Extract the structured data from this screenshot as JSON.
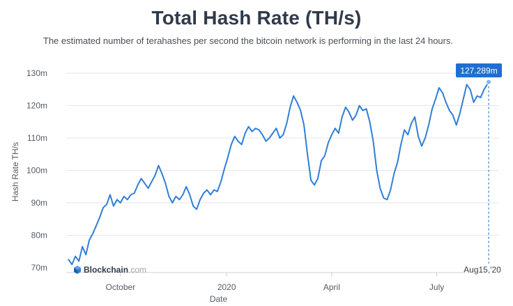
{
  "chart_data": {
    "type": "line",
    "title": "Total Hash Rate (TH/s)",
    "subtitle": "The estimated number of terahashes per second the bitcoin network is performing in the last 24 hours.",
    "xlabel": "Date",
    "ylabel": "Hash Rate TH/s",
    "ylim": [
      70000000,
      130000000
    ],
    "yticks": [
      {
        "value": 70000000,
        "label": "70m"
      },
      {
        "value": 80000000,
        "label": "80m"
      },
      {
        "value": 90000000,
        "label": "90m"
      },
      {
        "value": 100000000,
        "label": "100m"
      },
      {
        "value": 110000000,
        "label": "110m"
      },
      {
        "value": 120000000,
        "label": "120m"
      },
      {
        "value": 130000000,
        "label": "130m"
      }
    ],
    "xlim": [
      "2019-08-15",
      "2020-08-24"
    ],
    "xticks": [
      {
        "value": "2019-10-01",
        "label": "October"
      },
      {
        "value": "2020-01-01",
        "label": "2020"
      },
      {
        "value": "2020-04-01",
        "label": "April"
      },
      {
        "value": "2020-07-01",
        "label": "July"
      }
    ],
    "grid": true,
    "legend": "none",
    "series": [
      {
        "color": "#2f7ed8",
        "points": [
          [
            "2019-08-17",
            72.5
          ],
          [
            "2019-08-20",
            71.0
          ],
          [
            "2019-08-23",
            73.5
          ],
          [
            "2019-08-26",
            72.0
          ],
          [
            "2019-08-29",
            76.5
          ],
          [
            "2019-09-01",
            74.0
          ],
          [
            "2019-09-04",
            78.5
          ],
          [
            "2019-09-07",
            80.5
          ],
          [
            "2019-09-10",
            83.0
          ],
          [
            "2019-09-13",
            85.5
          ],
          [
            "2019-09-16",
            88.5
          ],
          [
            "2019-09-19",
            89.5
          ],
          [
            "2019-09-22",
            92.5
          ],
          [
            "2019-09-25",
            89.0
          ],
          [
            "2019-09-28",
            91.0
          ],
          [
            "2019-10-01",
            90.0
          ],
          [
            "2019-10-04",
            92.0
          ],
          [
            "2019-10-07",
            91.0
          ],
          [
            "2019-10-10",
            92.5
          ],
          [
            "2019-10-13",
            93.0
          ],
          [
            "2019-10-16",
            95.5
          ],
          [
            "2019-10-19",
            97.5
          ],
          [
            "2019-10-22",
            96.0
          ],
          [
            "2019-10-25",
            94.5
          ],
          [
            "2019-10-28",
            96.5
          ],
          [
            "2019-10-31",
            98.5
          ],
          [
            "2019-11-03",
            101.5
          ],
          [
            "2019-11-06",
            99.0
          ],
          [
            "2019-11-09",
            96.0
          ],
          [
            "2019-11-12",
            92.0
          ],
          [
            "2019-11-15",
            90.0
          ],
          [
            "2019-11-18",
            92.0
          ],
          [
            "2019-11-21",
            91.0
          ],
          [
            "2019-11-24",
            92.5
          ],
          [
            "2019-11-27",
            95.0
          ],
          [
            "2019-11-30",
            92.5
          ],
          [
            "2019-12-03",
            89.0
          ],
          [
            "2019-12-06",
            88.0
          ],
          [
            "2019-12-09",
            91.0
          ],
          [
            "2019-12-12",
            93.0
          ],
          [
            "2019-12-15",
            94.0
          ],
          [
            "2019-12-18",
            92.5
          ],
          [
            "2019-12-21",
            94.0
          ],
          [
            "2019-12-24",
            93.5
          ],
          [
            "2019-12-27",
            96.5
          ],
          [
            "2019-12-30",
            100.5
          ],
          [
            "2020-01-02",
            104.0
          ],
          [
            "2020-01-05",
            108.0
          ],
          [
            "2020-01-08",
            110.5
          ],
          [
            "2020-01-11",
            109.0
          ],
          [
            "2020-01-14",
            108.0
          ],
          [
            "2020-01-17",
            111.5
          ],
          [
            "2020-01-20",
            113.5
          ],
          [
            "2020-01-23",
            112.0
          ],
          [
            "2020-01-26",
            113.0
          ],
          [
            "2020-01-29",
            112.5
          ],
          [
            "2020-02-01",
            111.0
          ],
          [
            "2020-02-04",
            109.0
          ],
          [
            "2020-02-07",
            110.0
          ],
          [
            "2020-02-10",
            111.5
          ],
          [
            "2020-02-13",
            113.0
          ],
          [
            "2020-02-16",
            110.0
          ],
          [
            "2020-02-19",
            111.0
          ],
          [
            "2020-02-22",
            114.5
          ],
          [
            "2020-02-25",
            119.5
          ],
          [
            "2020-02-28",
            123.0
          ],
          [
            "2020-03-02",
            121.0
          ],
          [
            "2020-03-05",
            118.5
          ],
          [
            "2020-03-08",
            114.0
          ],
          [
            "2020-03-11",
            105.0
          ],
          [
            "2020-03-14",
            97.0
          ],
          [
            "2020-03-17",
            95.5
          ],
          [
            "2020-03-20",
            97.5
          ],
          [
            "2020-03-23",
            103.0
          ],
          [
            "2020-03-26",
            104.5
          ],
          [
            "2020-03-29",
            108.5
          ],
          [
            "2020-04-01",
            111.0
          ],
          [
            "2020-04-04",
            113.0
          ],
          [
            "2020-04-07",
            111.5
          ],
          [
            "2020-04-10",
            116.5
          ],
          [
            "2020-04-13",
            119.5
          ],
          [
            "2020-04-16",
            118.0
          ],
          [
            "2020-04-19",
            115.5
          ],
          [
            "2020-04-22",
            117.0
          ],
          [
            "2020-04-25",
            120.0
          ],
          [
            "2020-04-28",
            118.5
          ],
          [
            "2020-05-01",
            119.0
          ],
          [
            "2020-05-04",
            115.0
          ],
          [
            "2020-05-07",
            109.0
          ],
          [
            "2020-05-10",
            100.0
          ],
          [
            "2020-05-13",
            94.5
          ],
          [
            "2020-05-16",
            91.5
          ],
          [
            "2020-05-19",
            91.0
          ],
          [
            "2020-05-22",
            94.0
          ],
          [
            "2020-05-25",
            99.0
          ],
          [
            "2020-05-28",
            102.5
          ],
          [
            "2020-05-31",
            108.0
          ],
          [
            "2020-06-03",
            112.5
          ],
          [
            "2020-06-06",
            111.0
          ],
          [
            "2020-06-09",
            114.5
          ],
          [
            "2020-06-12",
            116.5
          ],
          [
            "2020-06-15",
            110.5
          ],
          [
            "2020-06-18",
            107.5
          ],
          [
            "2020-06-21",
            110.0
          ],
          [
            "2020-06-24",
            114.0
          ],
          [
            "2020-06-27",
            119.0
          ],
          [
            "2020-06-30",
            122.0
          ],
          [
            "2020-07-03",
            125.5
          ],
          [
            "2020-07-06",
            124.0
          ],
          [
            "2020-07-09",
            121.0
          ],
          [
            "2020-07-12",
            118.5
          ],
          [
            "2020-07-15",
            117.0
          ],
          [
            "2020-07-18",
            114.0
          ],
          [
            "2020-07-21",
            117.5
          ],
          [
            "2020-07-24",
            122.0
          ],
          [
            "2020-07-27",
            126.5
          ],
          [
            "2020-07-30",
            125.0
          ],
          [
            "2020-08-02",
            121.0
          ],
          [
            "2020-08-05",
            123.0
          ],
          [
            "2020-08-08",
            122.5
          ],
          [
            "2020-08-11",
            125.0
          ],
          [
            "2020-08-15",
            127.289
          ]
        ]
      }
    ],
    "tooltip": {
      "label": "127.289m",
      "date_label": "Aug15,'20",
      "date": "2020-08-15",
      "value": 127.289
    }
  },
  "brand": {
    "name": "Blockchain",
    "suffix": ".com"
  },
  "colors": {
    "line": "#2f7ed8",
    "grid": "#e6e6e6",
    "tooltip_bg": "#1f6fd1",
    "crosshair": "#2f7ed8"
  }
}
